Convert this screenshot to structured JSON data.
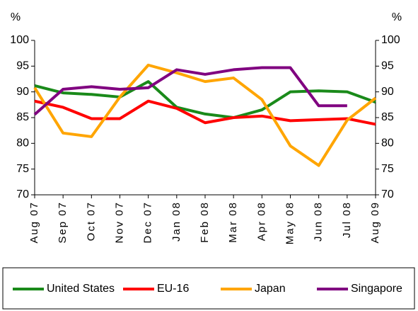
{
  "chart_data": {
    "type": "line",
    "y_label": "%",
    "y2_label": "%",
    "categories": [
      "Aug 07",
      "Sep 07",
      "Oct 07",
      "Nov 07",
      "Dec 07",
      "Jan 08",
      "Feb 08",
      "Mar 08",
      "Apr 08",
      "May 08",
      "Jun 08",
      "Jul 08",
      "Aug 09"
    ],
    "series": [
      {
        "name": "United States",
        "color": "#1a8a1a",
        "values": [
          91.2,
          89.8,
          89.5,
          89.0,
          92.0,
          87.0,
          85.7,
          85.0,
          86.5,
          90.0,
          90.2,
          90.0,
          88.0
        ]
      },
      {
        "name": "EU-16",
        "color": "#ff0000",
        "values": [
          88.2,
          87.0,
          84.8,
          84.8,
          88.2,
          86.8,
          84.0,
          85.0,
          85.3,
          84.4,
          84.6,
          84.8,
          83.7
        ]
      },
      {
        "name": "Japan",
        "color": "#ffa500",
        "values": [
          90.8,
          82.0,
          81.3,
          89.0,
          95.2,
          93.7,
          92.0,
          92.7,
          88.5,
          79.5,
          75.7,
          84.5,
          88.8
        ]
      },
      {
        "name": "Singapore",
        "color": "#800080",
        "values": [
          85.6,
          90.5,
          91.0,
          90.5,
          90.8,
          94.3,
          93.4,
          94.3,
          94.7,
          94.7,
          87.3,
          87.3,
          null
        ]
      }
    ],
    "ylim": [
      70,
      100
    ],
    "yticks": [
      70,
      75,
      80,
      85,
      90,
      95,
      100
    ],
    "y2lim": [
      70,
      100
    ],
    "y2ticks": [
      70,
      75,
      80,
      85,
      90,
      95,
      100
    ],
    "legend": "bottom"
  }
}
